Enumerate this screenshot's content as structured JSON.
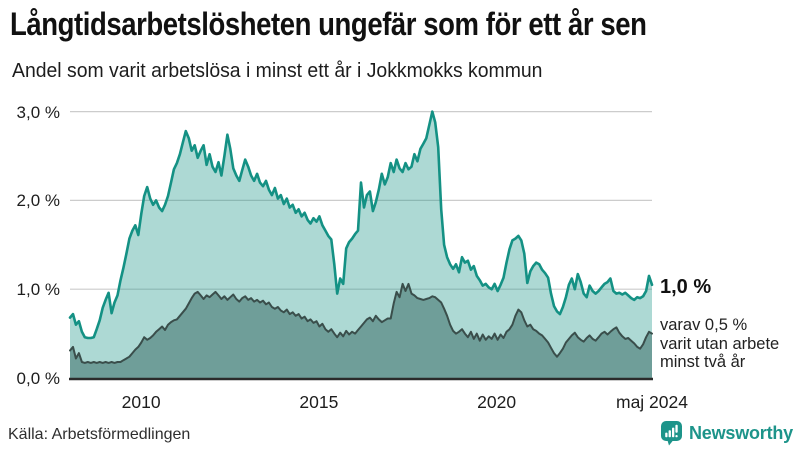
{
  "title": "Långtidsarbetslösheten ungefär som för ett år sen",
  "subtitle": "Andel som varit arbetslösa i minst ett år i Jokkmokks kommun",
  "source": "Källa: Arbetsförmedlingen",
  "branding": {
    "name": "Newsworthy"
  },
  "annotations": {
    "latest_value": "1,0 %",
    "secondary_line1": "varav 0,5 %",
    "secondary_line2": "varit utan arbete",
    "secondary_line3": "minst två år"
  },
  "colors": {
    "line_primary": "#149184",
    "fill_primary": "rgba(20,145,132,0.35)",
    "line_secondary": "#3a4e4b",
    "fill_secondary": "#6f9e99",
    "gridline": "#cccccc",
    "axis": "#2b2b2b",
    "brand_teal": "#1d948a"
  },
  "chart_data": {
    "type": "area",
    "title": "Långtidsarbetslösheten ungefär som för ett år sen",
    "subtitle": "Andel som varit arbetslösa i minst ett år i Jokkmokks kommun",
    "unit": "%",
    "frequency": "monthly",
    "x_start": "2008-01",
    "x_end": "2024-05",
    "x_range": [
      2008.0,
      2024.37
    ],
    "ylim": [
      0,
      3.0
    ],
    "grid": "horizontal",
    "y_ticks": [
      0,
      1,
      2,
      3
    ],
    "y_tick_labels": [
      "0,0 %",
      "1,0 %",
      "2,0 %",
      "3,0 %"
    ],
    "x_ticks": [
      {
        "label": "2010",
        "t": 2010.0
      },
      {
        "label": "2015",
        "t": 2015.0
      },
      {
        "label": "2020",
        "t": 2020.0
      },
      {
        "label": "maj 2024",
        "t": 2024.37
      }
    ],
    "series": [
      {
        "name": "Andel arbetslösa minst ett år",
        "latest_label": "1,0 %",
        "values": [
          0.68,
          0.72,
          0.6,
          0.64,
          0.52,
          0.46,
          0.45,
          0.45,
          0.46,
          0.55,
          0.65,
          0.79,
          0.88,
          0.96,
          0.73,
          0.85,
          0.93,
          1.1,
          1.24,
          1.4,
          1.57,
          1.66,
          1.72,
          1.61,
          1.85,
          2.05,
          2.15,
          2.02,
          1.95,
          2.0,
          1.92,
          1.88,
          1.95,
          2.05,
          2.2,
          2.35,
          2.42,
          2.52,
          2.65,
          2.78,
          2.7,
          2.56,
          2.62,
          2.48,
          2.56,
          2.62,
          2.4,
          2.52,
          2.38,
          2.32,
          2.43,
          2.28,
          2.5,
          2.74,
          2.58,
          2.36,
          2.28,
          2.22,
          2.34,
          2.46,
          2.38,
          2.28,
          2.22,
          2.3,
          2.2,
          2.16,
          2.22,
          2.12,
          2.06,
          2.14,
          2.02,
          2.06,
          1.96,
          2.02,
          1.92,
          1.95,
          1.86,
          1.9,
          1.82,
          1.86,
          1.78,
          1.74,
          1.8,
          1.76,
          1.82,
          1.72,
          1.66,
          1.6,
          1.56,
          1.28,
          0.95,
          1.12,
          1.06,
          1.46,
          1.53,
          1.57,
          1.62,
          1.66,
          2.2,
          1.92,
          2.06,
          2.1,
          1.88,
          1.98,
          2.12,
          2.3,
          2.18,
          2.26,
          2.42,
          2.32,
          2.46,
          2.36,
          2.32,
          2.42,
          2.35,
          2.38,
          2.52,
          2.44,
          2.58,
          2.64,
          2.7,
          2.85,
          3.0,
          2.88,
          2.6,
          1.9,
          1.5,
          1.36,
          1.28,
          1.23,
          1.28,
          1.19,
          1.36,
          1.3,
          1.32,
          1.22,
          1.26,
          1.15,
          1.1,
          1.04,
          1.06,
          1.02,
          1.0,
          1.06,
          0.98,
          1.05,
          1.13,
          1.3,
          1.45,
          1.55,
          1.57,
          1.6,
          1.55,
          1.4,
          1.07,
          1.2,
          1.26,
          1.3,
          1.28,
          1.22,
          1.18,
          1.13,
          0.95,
          0.81,
          0.75,
          0.72,
          0.8,
          0.91,
          1.05,
          1.12,
          1.0,
          1.17,
          1.08,
          0.95,
          0.91,
          1.04,
          0.98,
          0.95,
          0.98,
          1.02,
          1.06,
          1.08,
          1.12,
          0.98,
          0.95,
          0.96,
          0.94,
          0.96,
          0.93,
          0.9,
          0.88,
          0.91,
          0.9,
          0.92,
          0.98,
          1.15,
          1.05
        ]
      },
      {
        "name": "Andel arbetslösa minst två år",
        "latest_label": "0,5 %",
        "values": [
          0.31,
          0.35,
          0.22,
          0.28,
          0.18,
          0.17,
          0.18,
          0.17,
          0.18,
          0.17,
          0.18,
          0.17,
          0.18,
          0.17,
          0.18,
          0.17,
          0.18,
          0.18,
          0.2,
          0.22,
          0.24,
          0.28,
          0.32,
          0.35,
          0.4,
          0.46,
          0.43,
          0.45,
          0.48,
          0.52,
          0.55,
          0.58,
          0.54,
          0.6,
          0.63,
          0.65,
          0.66,
          0.7,
          0.74,
          0.78,
          0.84,
          0.9,
          0.95,
          0.97,
          0.93,
          0.89,
          0.93,
          0.91,
          0.94,
          0.97,
          0.93,
          0.89,
          0.92,
          0.88,
          0.91,
          0.94,
          0.89,
          0.86,
          0.9,
          0.92,
          0.88,
          0.9,
          0.86,
          0.88,
          0.85,
          0.87,
          0.83,
          0.85,
          0.8,
          0.78,
          0.8,
          0.76,
          0.74,
          0.77,
          0.72,
          0.74,
          0.7,
          0.72,
          0.67,
          0.69,
          0.64,
          0.66,
          0.62,
          0.64,
          0.58,
          0.61,
          0.55,
          0.52,
          0.55,
          0.5,
          0.46,
          0.51,
          0.47,
          0.53,
          0.49,
          0.52,
          0.5,
          0.54,
          0.58,
          0.62,
          0.66,
          0.68,
          0.64,
          0.7,
          0.66,
          0.63,
          0.65,
          0.67,
          0.67,
          0.84,
          0.97,
          0.91,
          1.06,
          0.98,
          1.06,
          0.95,
          0.93,
          0.9,
          0.89,
          0.88,
          0.89,
          0.9,
          0.92,
          0.91,
          0.88,
          0.85,
          0.78,
          0.7,
          0.6,
          0.53,
          0.5,
          0.52,
          0.55,
          0.5,
          0.46,
          0.52,
          0.44,
          0.5,
          0.42,
          0.49,
          0.43,
          0.47,
          0.44,
          0.5,
          0.43,
          0.49,
          0.45,
          0.52,
          0.55,
          0.6,
          0.7,
          0.77,
          0.74,
          0.65,
          0.58,
          0.6,
          0.55,
          0.53,
          0.5,
          0.48,
          0.44,
          0.4,
          0.34,
          0.28,
          0.24,
          0.28,
          0.33,
          0.4,
          0.44,
          0.48,
          0.51,
          0.46,
          0.43,
          0.41,
          0.45,
          0.48,
          0.44,
          0.42,
          0.46,
          0.5,
          0.52,
          0.49,
          0.52,
          0.55,
          0.57,
          0.51,
          0.47,
          0.44,
          0.45,
          0.42,
          0.39,
          0.35,
          0.33,
          0.38,
          0.46,
          0.52,
          0.5
        ]
      }
    ]
  }
}
